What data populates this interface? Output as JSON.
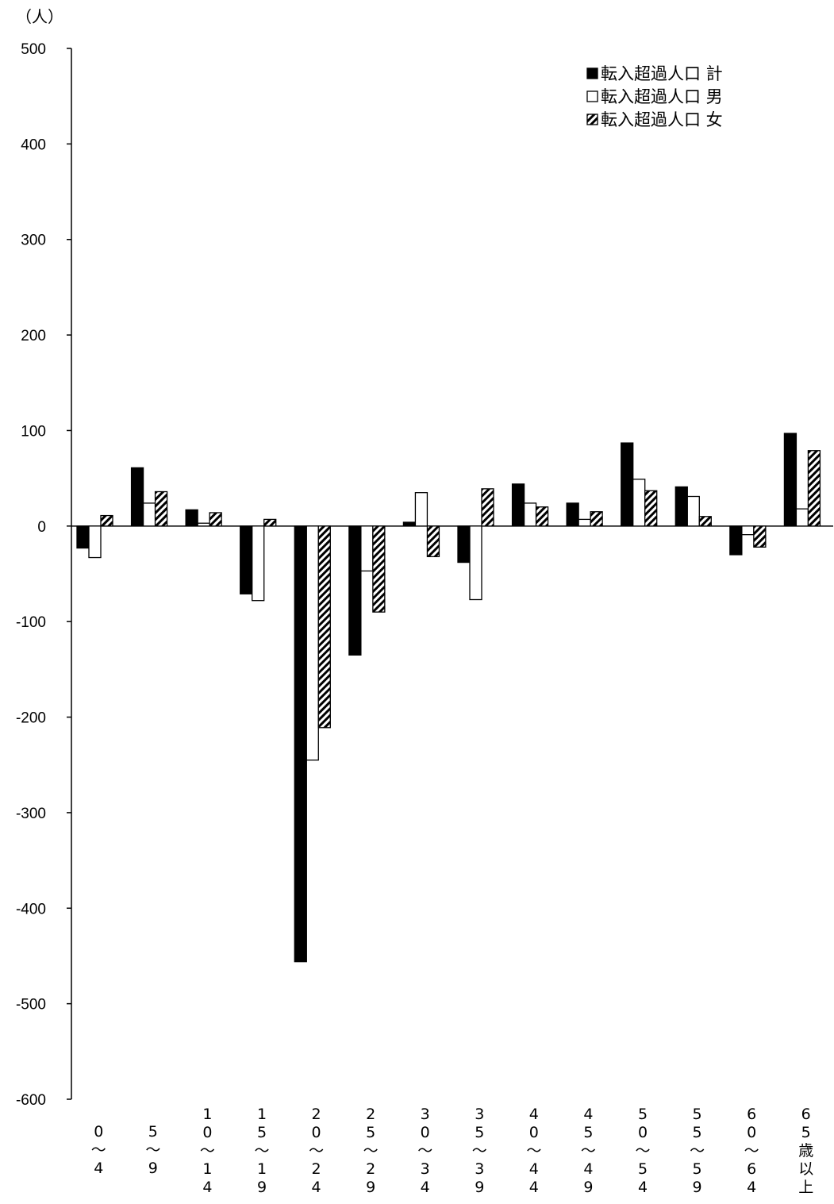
{
  "chart_data": {
    "type": "bar",
    "unit_label": "（人）",
    "ylim": [
      -600,
      500
    ],
    "yticks": [
      500,
      400,
      300,
      200,
      100,
      0,
      -100,
      -200,
      -300,
      -400,
      -500,
      -600
    ],
    "ytick_labels": [
      "500",
      "400",
      "300",
      "200",
      "100",
      "0",
      "-100",
      "-200",
      "-300",
      "-400",
      "-500",
      "-600"
    ],
    "categories": [
      "0〜4",
      "5〜9",
      "10〜14",
      "15〜19",
      "20〜24",
      "25〜29",
      "30〜34",
      "35〜39",
      "40〜44",
      "45〜49",
      "50〜54",
      "55〜59",
      "60〜64",
      "65歳以上"
    ],
    "category_lines": [
      [
        "0",
        "〜",
        "4"
      ],
      [
        "5",
        "〜",
        "9"
      ],
      [
        "1",
        "0",
        "〜",
        "1",
        "4"
      ],
      [
        "1",
        "5",
        "〜",
        "1",
        "9"
      ],
      [
        "2",
        "0",
        "〜",
        "2",
        "4"
      ],
      [
        "2",
        "5",
        "〜",
        "2",
        "9"
      ],
      [
        "3",
        "0",
        "〜",
        "3",
        "4"
      ],
      [
        "3",
        "5",
        "〜",
        "3",
        "9"
      ],
      [
        "4",
        "0",
        "〜",
        "4",
        "4"
      ],
      [
        "4",
        "5",
        "〜",
        "4",
        "9"
      ],
      [
        "5",
        "0",
        "〜",
        "5",
        "4"
      ],
      [
        "5",
        "5",
        "〜",
        "5",
        "9"
      ],
      [
        "6",
        "0",
        "〜",
        "6",
        "4"
      ],
      [
        "6",
        "5",
        "歳",
        "以",
        "上"
      ]
    ],
    "series": [
      {
        "name": "転入超過人口 計",
        "style": "solid",
        "color": "#000000",
        "values": [
          -23,
          61,
          17,
          -71,
          -456,
          -135,
          4,
          -38,
          44,
          24,
          87,
          41,
          -30,
          97
        ]
      },
      {
        "name": "転入超過人口 男",
        "style": "hollow",
        "color": "#ffffff",
        "values": [
          -33,
          24,
          3,
          -78,
          -245,
          -47,
          35,
          -77,
          24,
          7,
          49,
          31,
          -9,
          18
        ]
      },
      {
        "name": "転入超過人口 女",
        "style": "hatched",
        "color": "#000000",
        "values": [
          11,
          36,
          14,
          7,
          -211,
          -90,
          -32,
          39,
          20,
          15,
          37,
          10,
          -22,
          79
        ]
      }
    ],
    "legend_position": "top-right",
    "grid": false
  }
}
